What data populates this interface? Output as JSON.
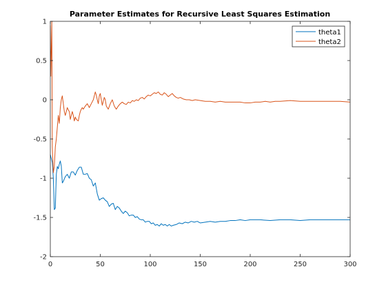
{
  "chart_data": {
    "type": "line",
    "title": "Parameter Estimates for Recursive Least Squares Estimation",
    "xlabel": "",
    "ylabel": "",
    "xlim": [
      0,
      300
    ],
    "ylim": [
      -2,
      1
    ],
    "x_ticks": [
      0,
      50,
      100,
      150,
      200,
      250,
      300
    ],
    "y_ticks": [
      -2,
      -1.5,
      -1,
      -0.5,
      0,
      0.5,
      1
    ],
    "grid": false,
    "legend_position": "top-right",
    "series": [
      {
        "name": "theta1",
        "color": "#0072BD",
        "points": [
          [
            0,
            -0.7
          ],
          [
            1,
            -0.75
          ],
          [
            2,
            -0.8
          ],
          [
            3,
            -1.0
          ],
          [
            4,
            -1.4
          ],
          [
            5,
            -1.38
          ],
          [
            6,
            -0.95
          ],
          [
            7,
            -0.85
          ],
          [
            8,
            -0.88
          ],
          [
            9,
            -0.82
          ],
          [
            10,
            -0.78
          ],
          [
            11,
            -0.85
          ],
          [
            12,
            -1.06
          ],
          [
            13,
            -1.04
          ],
          [
            15,
            -0.98
          ],
          [
            17,
            -0.95
          ],
          [
            19,
            -1.0
          ],
          [
            21,
            -0.92
          ],
          [
            23,
            -0.92
          ],
          [
            25,
            -0.96
          ],
          [
            27,
            -0.9
          ],
          [
            29,
            -0.86
          ],
          [
            31,
            -0.86
          ],
          [
            33,
            -0.95
          ],
          [
            35,
            -0.95
          ],
          [
            37,
            -0.94
          ],
          [
            39,
            -1.0
          ],
          [
            41,
            -1.02
          ],
          [
            43,
            -1.1
          ],
          [
            45,
            -1.06
          ],
          [
            47,
            -1.2
          ],
          [
            49,
            -1.28
          ],
          [
            51,
            -1.26
          ],
          [
            53,
            -1.25
          ],
          [
            55,
            -1.28
          ],
          [
            57,
            -1.3
          ],
          [
            59,
            -1.36
          ],
          [
            61,
            -1.33
          ],
          [
            63,
            -1.32
          ],
          [
            65,
            -1.4
          ],
          [
            67,
            -1.36
          ],
          [
            69,
            -1.38
          ],
          [
            71,
            -1.42
          ],
          [
            73,
            -1.45
          ],
          [
            75,
            -1.42
          ],
          [
            77,
            -1.44
          ],
          [
            79,
            -1.48
          ],
          [
            81,
            -1.47
          ],
          [
            83,
            -1.47
          ],
          [
            85,
            -1.5
          ],
          [
            87,
            -1.49
          ],
          [
            89,
            -1.52
          ],
          [
            91,
            -1.53
          ],
          [
            93,
            -1.53
          ],
          [
            95,
            -1.56
          ],
          [
            97,
            -1.55
          ],
          [
            99,
            -1.55
          ],
          [
            101,
            -1.58
          ],
          [
            103,
            -1.57
          ],
          [
            105,
            -1.6
          ],
          [
            107,
            -1.59
          ],
          [
            109,
            -1.61
          ],
          [
            111,
            -1.58
          ],
          [
            113,
            -1.6
          ],
          [
            115,
            -1.59
          ],
          [
            117,
            -1.61
          ],
          [
            119,
            -1.59
          ],
          [
            121,
            -1.61
          ],
          [
            123,
            -1.6
          ],
          [
            126,
            -1.59
          ],
          [
            129,
            -1.57
          ],
          [
            132,
            -1.58
          ],
          [
            135,
            -1.56
          ],
          [
            138,
            -1.57
          ],
          [
            141,
            -1.55
          ],
          [
            144,
            -1.56
          ],
          [
            147,
            -1.55
          ],
          [
            150,
            -1.57
          ],
          [
            155,
            -1.56
          ],
          [
            160,
            -1.55
          ],
          [
            165,
            -1.56
          ],
          [
            170,
            -1.55
          ],
          [
            175,
            -1.55
          ],
          [
            180,
            -1.54
          ],
          [
            185,
            -1.54
          ],
          [
            190,
            -1.53
          ],
          [
            195,
            -1.54
          ],
          [
            200,
            -1.53
          ],
          [
            210,
            -1.53
          ],
          [
            220,
            -1.54
          ],
          [
            230,
            -1.53
          ],
          [
            240,
            -1.53
          ],
          [
            250,
            -1.54
          ],
          [
            260,
            -1.53
          ],
          [
            270,
            -1.53
          ],
          [
            280,
            -1.53
          ],
          [
            290,
            -1.53
          ],
          [
            300,
            -1.53
          ]
        ]
      },
      {
        "name": "theta2",
        "color": "#D95319",
        "points": [
          [
            0,
            0.95
          ],
          [
            0.5,
            0.3
          ],
          [
            1,
            0.65
          ],
          [
            1.5,
            1.0
          ],
          [
            2,
            -0.6
          ],
          [
            3,
            -0.93
          ],
          [
            4,
            -0.85
          ],
          [
            5,
            -0.6
          ],
          [
            6,
            -0.5
          ],
          [
            7,
            -0.35
          ],
          [
            8,
            -0.2
          ],
          [
            9,
            -0.3
          ],
          [
            10,
            -0.1
          ],
          [
            11,
            0.0
          ],
          [
            12,
            0.05
          ],
          [
            13,
            -0.05
          ],
          [
            14,
            -0.15
          ],
          [
            15,
            -0.2
          ],
          [
            16,
            -0.15
          ],
          [
            17,
            -0.1
          ],
          [
            18,
            -0.13
          ],
          [
            19,
            -0.15
          ],
          [
            20,
            -0.25
          ],
          [
            21,
            -0.2
          ],
          [
            22,
            -0.15
          ],
          [
            23,
            -0.2
          ],
          [
            24,
            -0.27
          ],
          [
            25,
            -0.22
          ],
          [
            26,
            -0.25
          ],
          [
            27,
            -0.26
          ],
          [
            28,
            -0.27
          ],
          [
            29,
            -0.2
          ],
          [
            30,
            -0.15
          ],
          [
            31,
            -0.12
          ],
          [
            32,
            -0.1
          ],
          [
            33,
            -0.12
          ],
          [
            35,
            -0.08
          ],
          [
            37,
            -0.05
          ],
          [
            39,
            -0.1
          ],
          [
            41,
            -0.05
          ],
          [
            43,
            0.0
          ],
          [
            44,
            0.05
          ],
          [
            45,
            0.1
          ],
          [
            46,
            0.06
          ],
          [
            47,
            0.0
          ],
          [
            48,
            -0.05
          ],
          [
            49,
            0.05
          ],
          [
            50,
            0.08
          ],
          [
            51,
            0.0
          ],
          [
            52,
            -0.07
          ],
          [
            53,
            -0.02
          ],
          [
            54,
            0.03
          ],
          [
            55,
            0.0
          ],
          [
            56,
            -0.08
          ],
          [
            58,
            -0.12
          ],
          [
            60,
            -0.05
          ],
          [
            62,
            0.0
          ],
          [
            64,
            -0.08
          ],
          [
            66,
            -0.12
          ],
          [
            68,
            -0.08
          ],
          [
            70,
            -0.05
          ],
          [
            72,
            -0.03
          ],
          [
            74,
            -0.05
          ],
          [
            76,
            -0.06
          ],
          [
            78,
            -0.03
          ],
          [
            80,
            -0.04
          ],
          [
            82,
            -0.01
          ],
          [
            84,
            -0.02
          ],
          [
            86,
            0.0
          ],
          [
            88,
            -0.01
          ],
          [
            90,
            0.02
          ],
          [
            92,
            0.03
          ],
          [
            94,
            0.01
          ],
          [
            96,
            0.04
          ],
          [
            98,
            0.06
          ],
          [
            100,
            0.05
          ],
          [
            102,
            0.07
          ],
          [
            104,
            0.09
          ],
          [
            106,
            0.08
          ],
          [
            108,
            0.1
          ],
          [
            110,
            0.07
          ],
          [
            112,
            0.06
          ],
          [
            114,
            0.09
          ],
          [
            116,
            0.07
          ],
          [
            118,
            0.04
          ],
          [
            120,
            0.06
          ],
          [
            122,
            0.08
          ],
          [
            124,
            0.05
          ],
          [
            126,
            0.03
          ],
          [
            128,
            0.02
          ],
          [
            130,
            0.03
          ],
          [
            133,
            0.01
          ],
          [
            136,
            0.0
          ],
          [
            139,
            0.0
          ],
          [
            142,
            -0.01
          ],
          [
            145,
            0.0
          ],
          [
            150,
            -0.01
          ],
          [
            155,
            -0.02
          ],
          [
            160,
            -0.02
          ],
          [
            165,
            -0.03
          ],
          [
            170,
            -0.02
          ],
          [
            175,
            -0.03
          ],
          [
            180,
            -0.03
          ],
          [
            185,
            -0.03
          ],
          [
            190,
            -0.03
          ],
          [
            195,
            -0.04
          ],
          [
            200,
            -0.04
          ],
          [
            205,
            -0.03
          ],
          [
            210,
            -0.03
          ],
          [
            215,
            -0.02
          ],
          [
            220,
            -0.03
          ],
          [
            225,
            -0.02
          ],
          [
            230,
            -0.02
          ],
          [
            240,
            -0.01
          ],
          [
            250,
            -0.02
          ],
          [
            260,
            -0.02
          ],
          [
            270,
            -0.02
          ],
          [
            280,
            -0.02
          ],
          [
            290,
            -0.02
          ],
          [
            300,
            -0.03
          ]
        ]
      }
    ]
  }
}
